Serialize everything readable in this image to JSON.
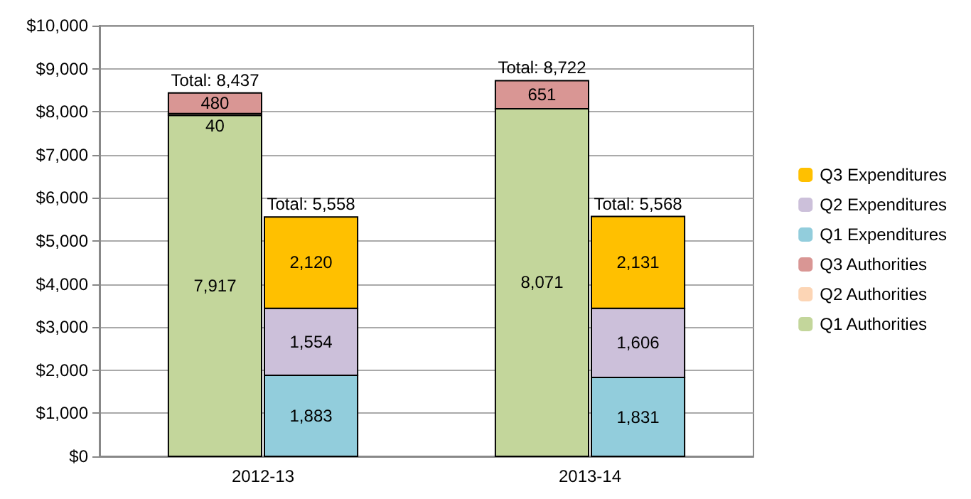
{
  "chart_data": {
    "type": "bar",
    "categories": [
      "2012-13",
      "2013-14"
    ],
    "series": [
      {
        "name": "Q1 Authorities",
        "color": "#c3d69b",
        "base": [
          0,
          0
        ],
        "values": [
          7917,
          8071
        ],
        "value_labels": [
          "7,917",
          "8,071"
        ]
      },
      {
        "name": "Q2 Authorities",
        "color": "#fcd5b5",
        "base": [
          7917,
          null
        ],
        "values": [
          40,
          null
        ],
        "value_labels": [
          "40",
          null
        ]
      },
      {
        "name": "Q3 Authorities",
        "color": "#d99694",
        "base": [
          7957,
          8071
        ],
        "values": [
          480,
          651
        ],
        "value_labels": [
          "480",
          "651"
        ]
      },
      {
        "name": "Q1 Expenditures",
        "color": "#92cddc",
        "base": [
          0,
          0
        ],
        "values": [
          1883,
          1831
        ],
        "value_labels": [
          "1,883",
          "1,831"
        ]
      },
      {
        "name": "Q2 Expenditures",
        "color": "#ccc0da",
        "base": [
          1883,
          1831
        ],
        "values": [
          1554,
          1606
        ],
        "value_labels": [
          "1,554",
          "1,606"
        ]
      },
      {
        "name": "Q3 Expenditures",
        "color": "#ffc000",
        "base": [
          3437,
          3437
        ],
        "values": [
          2120,
          2131
        ],
        "value_labels": [
          "2,120",
          "2,131"
        ]
      }
    ],
    "annotations": [
      {
        "text": "Total: 8,437",
        "x": "2012-13",
        "y": 8437
      },
      {
        "text": "Total: 5,558",
        "x": "2012-13",
        "y": 5557
      },
      {
        "text": "Total: 8,722",
        "x": "2013-14",
        "y": 8722
      },
      {
        "text": "Total: 5,568",
        "x": "2013-14",
        "y": 5568
      }
    ],
    "grid": "y",
    "legend": "right",
    "ylim": [
      0,
      10000
    ],
    "yticks": [
      {
        "value": 0,
        "label": "$0"
      },
      {
        "value": 1000,
        "label": "$1,000"
      },
      {
        "value": 2000,
        "label": "$2,000"
      },
      {
        "value": 3000,
        "label": "$3,000"
      },
      {
        "value": 4000,
        "label": "$4,000"
      },
      {
        "value": 5000,
        "label": "$5,000"
      },
      {
        "value": 6000,
        "label": "$6,000"
      },
      {
        "value": 7000,
        "label": "$7,000"
      },
      {
        "value": 8000,
        "label": "$8,000"
      },
      {
        "value": 9000,
        "label": "$9,000"
      },
      {
        "value": 10000,
        "label": "$10,000"
      }
    ]
  }
}
